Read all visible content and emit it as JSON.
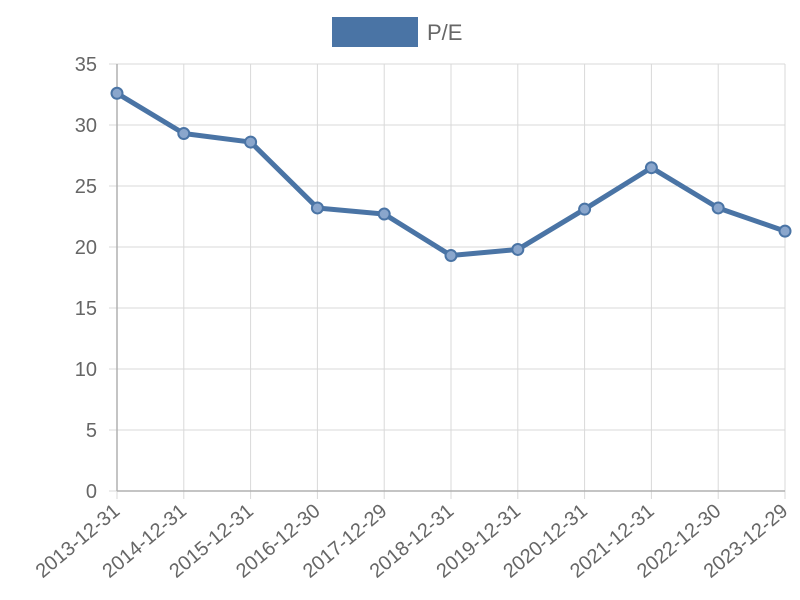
{
  "chart_data": {
    "type": "line",
    "categories": [
      "2013-12-31",
      "2014-12-31",
      "2015-12-31",
      "2016-12-30",
      "2017-12-29",
      "2018-12-31",
      "2019-12-31",
      "2020-12-31",
      "2021-12-31",
      "2022-12-30",
      "2023-12-29"
    ],
    "series": [
      {
        "name": "P/E",
        "values": [
          32.6,
          29.3,
          28.6,
          23.2,
          22.7,
          19.3,
          19.8,
          23.1,
          26.5,
          23.2,
          21.3
        ]
      }
    ],
    "ylim": [
      0,
      35
    ],
    "yticks": [
      0,
      5,
      10,
      15,
      20,
      25,
      30,
      35
    ],
    "grid": true,
    "legend": "top-center",
    "colors": {
      "line": "#4a74a5",
      "point_fill": "#8aa6cc",
      "grid": "#d9d9d9",
      "text": "#666666"
    }
  }
}
